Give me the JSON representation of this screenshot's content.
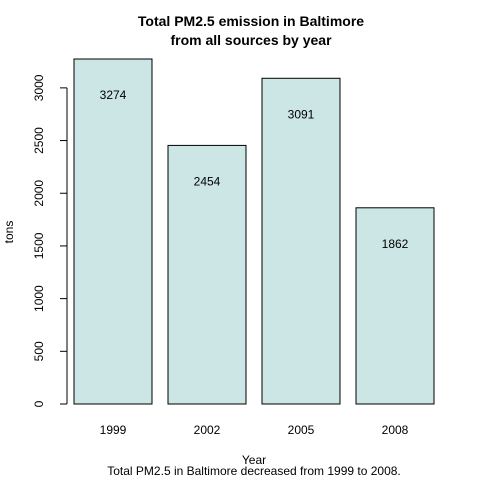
{
  "chart_data": {
    "type": "bar",
    "title": "Total PM2.5 emission in Baltimore",
    "subtitle": "from all sources by year",
    "xlabel": "Year",
    "ylabel": "tons",
    "caption": "Total PM2.5 in Baltimore decreased from 1999 to 2008.",
    "categories": [
      "1999",
      "2002",
      "2005",
      "2008"
    ],
    "values": [
      3274,
      2454,
      3091,
      1862
    ],
    "value_labels": [
      "3274",
      "2454",
      "3091",
      "1862"
    ],
    "ylim": [
      0,
      3274
    ],
    "yticks": [
      0,
      500,
      1000,
      1500,
      2000,
      2500,
      3000
    ],
    "ytick_labels": [
      "0",
      "500",
      "1000",
      "1500",
      "2000",
      "2500",
      "3000"
    ],
    "grid": false,
    "bar_color": "#cce5e5",
    "bar_border_color": "#000000"
  }
}
